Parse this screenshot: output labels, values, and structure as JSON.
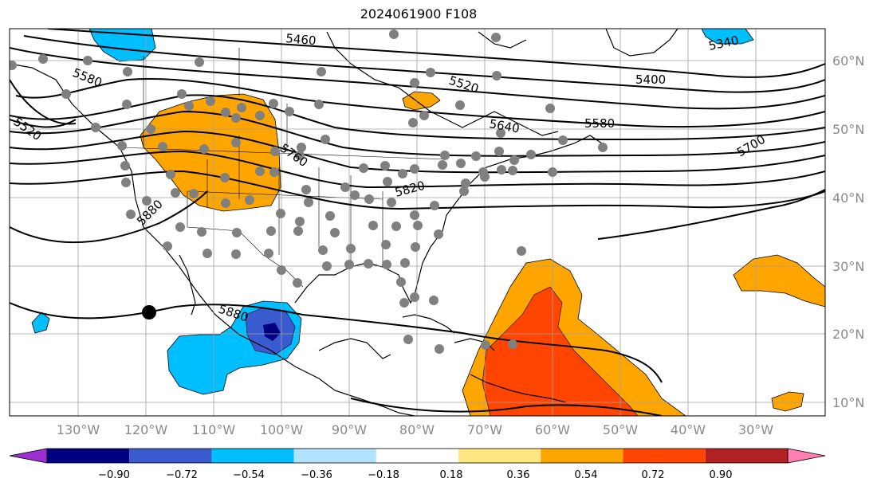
{
  "title": "2024061900 F108",
  "map": {
    "lon_labels": [
      "130°W",
      "120°W",
      "110°W",
      "100°W",
      "90°W",
      "80°W",
      "70°W",
      "60°W",
      "50°W",
      "40°W",
      "30°W"
    ],
    "lat_labels": [
      "60°N",
      "50°N",
      "40°N",
      "30°N",
      "20°N",
      "10°N"
    ],
    "contour_labels": [
      "5340",
      "5400",
      "5460",
      "5520",
      "5520",
      "5580",
      "5580",
      "5640",
      "5700",
      "5760",
      "5820",
      "5880",
      "5880"
    ],
    "contour_color": "#000000",
    "grid_color": "#a0a0a0",
    "marker": {
      "type": "black-dot",
      "lon": -119.3,
      "lat": 23.0
    },
    "stations_color": "#808080"
  },
  "colorbar": {
    "ticks": [
      "−0.90",
      "−0.72",
      "−0.54",
      "−0.36",
      "−0.18",
      "0.18",
      "0.36",
      "0.54",
      "0.72",
      "0.90"
    ],
    "colors": [
      "#9b30d3",
      "#000080",
      "#3a5bd0",
      "#00bfff",
      "#b3e2ff",
      "#ffffff",
      "#ffe680",
      "#ffa500",
      "#ff4500",
      "#b22222",
      "#ff80b0"
    ]
  }
}
